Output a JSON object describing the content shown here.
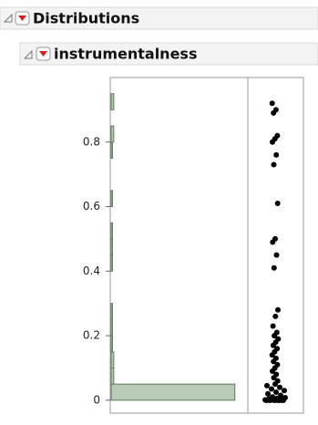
{
  "header": {
    "title": "Distributions",
    "subtitle": "instrumentalness"
  },
  "chart_data": [
    {
      "type": "histogram",
      "orientation": "horizontal",
      "color": "#b8cbb6",
      "bins": [
        0,
        0.05,
        0.1,
        0.15,
        0.2,
        0.25,
        0.3,
        0.35,
        0.4,
        0.45,
        0.5,
        0.55,
        0.6,
        0.65,
        0.7,
        0.75,
        0.8,
        0.85,
        0.9,
        0.95
      ],
      "values": [
        95,
        2,
        2,
        1,
        1,
        1,
        0,
        0,
        1,
        1,
        1,
        0,
        1,
        0,
        0,
        1,
        2,
        0,
        2
      ],
      "xlim": [
        0,
        105
      ],
      "ylim": [
        -0.04,
        1.0
      ],
      "yticks": [
        0,
        0.2,
        0.4,
        0.6,
        0.8
      ]
    },
    {
      "type": "dotplot",
      "color": "#000000",
      "ylim": [
        -0.04,
        1.0
      ],
      "values": [
        0.92,
        0.9,
        0.89,
        0.82,
        0.81,
        0.8,
        0.76,
        0.73,
        0.61,
        0.5,
        0.49,
        0.45,
        0.41,
        0.28,
        0.26,
        0.23,
        0.21,
        0.2,
        0.19,
        0.18,
        0.17,
        0.16,
        0.15,
        0.14,
        0.13,
        0.12,
        0.11,
        0.1,
        0.09,
        0.08,
        0.07,
        0.06,
        0.05,
        0.045,
        0.04,
        0.035,
        0.03,
        0.025,
        0.02,
        0.015,
        0.01,
        0.008,
        0.006,
        0.004,
        0.003,
        0.002,
        0.001,
        0,
        0,
        0,
        0,
        0,
        0,
        0,
        0,
        0,
        0,
        0
      ]
    }
  ]
}
